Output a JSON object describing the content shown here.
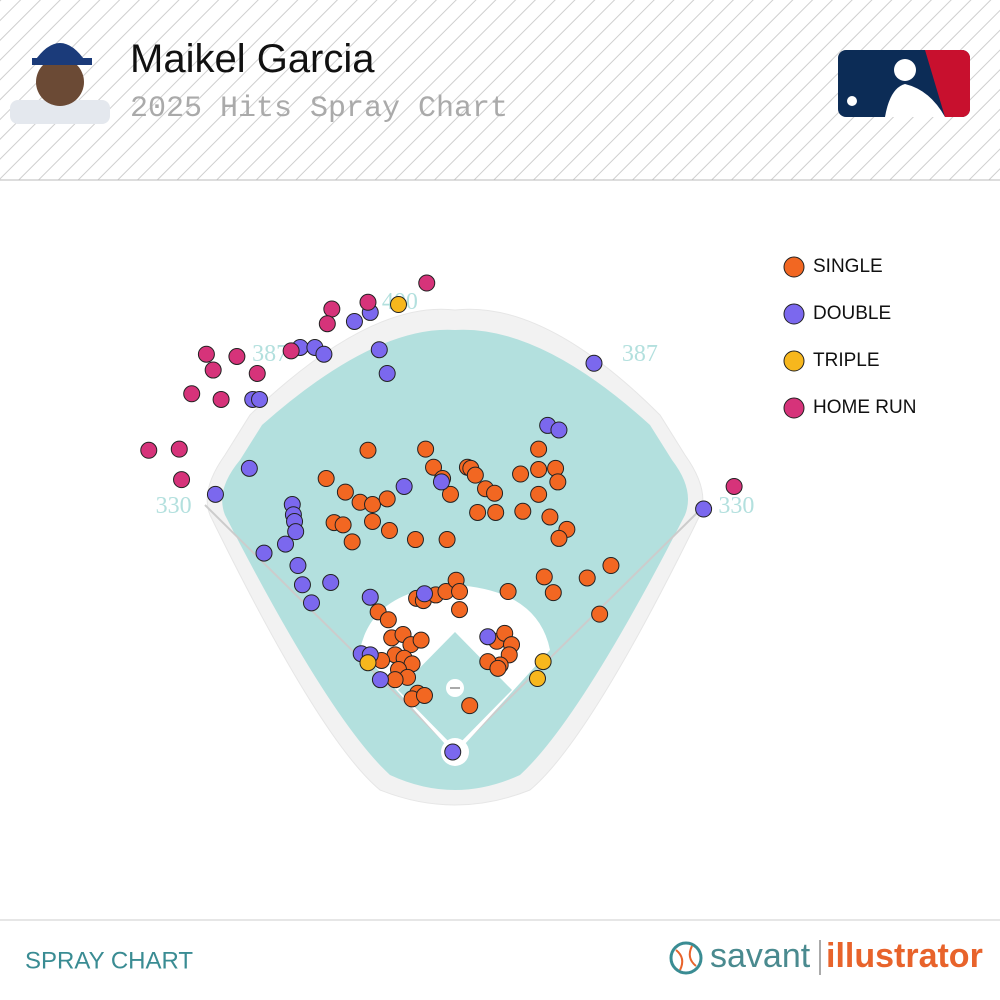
{
  "header": {
    "player": "Maikel Garcia",
    "subtitle": "2025 Hits Spray Chart"
  },
  "chart_data": {
    "type": "scatter",
    "fence_labels": [
      330,
      387,
      400,
      387,
      330
    ],
    "series": [
      {
        "name": "SINGLE",
        "color": "#f26722",
        "x": [
          -77,
          -26,
          -19,
          11,
          14,
          18,
          58,
          74,
          74,
          89,
          91,
          -114,
          -97,
          -84,
          -73,
          -60,
          -11,
          -4,
          27,
          35,
          74,
          60,
          36,
          20,
          84,
          99,
          92,
          -107,
          -99,
          -73,
          -58,
          -91,
          -35,
          -7,
          47,
          79,
          117,
          138,
          87,
          128,
          -34,
          -28,
          -17,
          -8,
          1,
          4,
          4,
          -68,
          -59,
          -56,
          -46,
          -39,
          -30,
          -53,
          -45,
          -38,
          -50,
          -42,
          -33,
          -38,
          -27,
          -65,
          -53,
          13,
          37,
          44,
          50,
          48,
          40,
          29,
          38
        ],
        "y": [
          267,
          268,
          252,
          252,
          251,
          245,
          246,
          268,
          250,
          251,
          239,
          242,
          230,
          221,
          219,
          224,
          242,
          228,
          233,
          229,
          228,
          213,
          212,
          212,
          208,
          197,
          189,
          203,
          201,
          204,
          196,
          186,
          188,
          188,
          142,
          155,
          154,
          165,
          141,
          122,
          136,
          134,
          139,
          142,
          152,
          142,
          126,
          124,
          117,
          101,
          104,
          95,
          99,
          86,
          83,
          78,
          73,
          66,
          52,
          47,
          50,
          81,
          64,
          41,
          98,
          105,
          95,
          86,
          77,
          80,
          74
        ]
      },
      {
        "name": "DOUBLE",
        "color": "#7b68ee",
        "x": [
          -75,
          -89,
          -137,
          -124,
          -116,
          -67,
          -60,
          -179,
          -173,
          123,
          82,
          92,
          -182,
          -45,
          -12,
          -212,
          -144,
          -143,
          -142,
          -141,
          -150,
          -169,
          -139,
          -135,
          -110,
          -127,
          -75,
          -27,
          220,
          -83,
          -75,
          -66,
          29,
          -2
        ],
        "y": [
          389,
          381,
          358,
          358,
          352,
          356,
          335,
          312,
          312,
          344,
          289,
          285,
          251,
          235,
          239,
          228,
          219,
          210,
          204,
          195,
          184,
          176,
          165,
          148,
          150,
          132,
          137,
          140,
          215,
          87,
          86,
          64,
          102,
          0
        ]
      },
      {
        "name": "TRIPLE",
        "color": "#f7b71d",
        "x": [
          -50,
          -77,
          78,
          73
        ],
        "y": [
          396,
          79,
          80,
          65
        ]
      },
      {
        "name": "HOME RUN",
        "color": "#d6337a",
        "x": [
          -25,
          -109,
          -77,
          -113,
          -220,
          -193,
          -145,
          -214,
          -175,
          -233,
          -207,
          -271,
          -244,
          -242,
          247
        ],
        "y": [
          415,
          392,
          398,
          379,
          352,
          350,
          355,
          338,
          335,
          317,
          312,
          267,
          268,
          241,
          235
        ]
      }
    ]
  },
  "footer": {
    "label": "SPRAY CHART",
    "brand": "savant",
    "brand2": "illustrator"
  }
}
